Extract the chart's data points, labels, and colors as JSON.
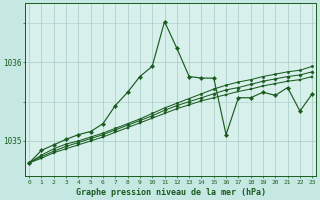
{
  "background_color": "#c6e8e2",
  "plot_bg_color": "#d8f0ec",
  "grid_color": "#a8ccc8",
  "line_color": "#1a5c20",
  "xlabel": "Graphe pression niveau de la mer (hPa)",
  "y_ticks": [
    1035,
    1036
  ],
  "ylim": [
    1034.55,
    1036.75
  ],
  "xlim": [
    -0.3,
    23.3
  ],
  "x_labels": [
    "0",
    "1",
    "2",
    "3",
    "4",
    "5",
    "6",
    "7",
    "8",
    "9",
    "10",
    "11",
    "12",
    "13",
    "14",
    "15",
    "16",
    "17",
    "18",
    "19",
    "20",
    "21",
    "22",
    "23"
  ],
  "series": {
    "volatile": [
      1034.72,
      1034.88,
      1034.95,
      1035.02,
      1035.08,
      1035.12,
      1035.22,
      1035.45,
      1035.62,
      1035.82,
      1035.95,
      1036.52,
      1036.18,
      1035.82,
      1035.8,
      1035.8,
      1035.08,
      1035.55,
      1035.55,
      1035.62,
      1035.58,
      1035.68,
      1035.38,
      1035.6
    ],
    "smooth1": [
      1034.72,
      1034.82,
      1034.9,
      1034.96,
      1035.0,
      1035.05,
      1035.1,
      1035.16,
      1035.22,
      1035.28,
      1035.35,
      1035.42,
      1035.48,
      1035.54,
      1035.6,
      1035.66,
      1035.71,
      1035.75,
      1035.78,
      1035.82,
      1035.85,
      1035.88,
      1035.9,
      1035.95
    ],
    "smooth2": [
      1034.72,
      1034.8,
      1034.87,
      1034.93,
      1034.98,
      1035.03,
      1035.08,
      1035.14,
      1035.2,
      1035.26,
      1035.32,
      1035.39,
      1035.45,
      1035.5,
      1035.55,
      1035.6,
      1035.65,
      1035.68,
      1035.72,
      1035.76,
      1035.79,
      1035.82,
      1035.84,
      1035.88
    ],
    "smooth3": [
      1034.72,
      1034.78,
      1034.85,
      1034.9,
      1034.95,
      1035.0,
      1035.05,
      1035.11,
      1035.17,
      1035.23,
      1035.29,
      1035.35,
      1035.41,
      1035.46,
      1035.51,
      1035.55,
      1035.59,
      1035.63,
      1035.66,
      1035.7,
      1035.73,
      1035.76,
      1035.78,
      1035.82
    ]
  }
}
